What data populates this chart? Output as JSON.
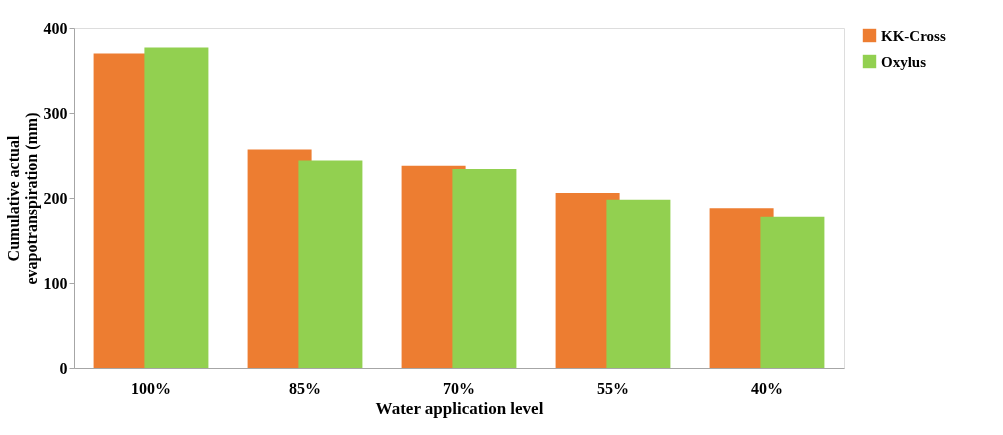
{
  "chart_data": {
    "type": "bar",
    "xlabel": "Water application level",
    "ylabel": "Cumulative actual\nevapotranspiration (mm)",
    "categories": [
      "100%",
      "85%",
      "70%",
      "55%",
      "40%"
    ],
    "series": [
      {
        "name": "KK-Cross",
        "color": "#ed7d31",
        "values": [
          370,
          257,
          238,
          206,
          188
        ]
      },
      {
        "name": "Oxylus",
        "color": "#92d050",
        "values": [
          377,
          244,
          234,
          198,
          178
        ]
      }
    ],
    "ylim": [
      0,
      400
    ],
    "yticks": [
      0,
      100,
      200,
      300,
      400
    ],
    "grid": false,
    "legend": "right"
  }
}
